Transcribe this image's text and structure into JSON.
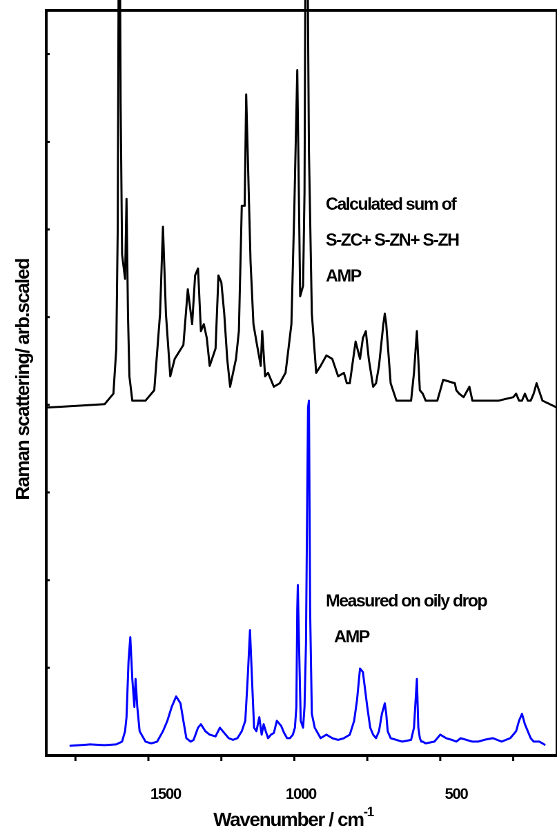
{
  "chart_data": {
    "type": "line",
    "xlabel": "Wavenumber / cm",
    "xlabel_superscript": "-1",
    "ylabel": "Raman scattering/ arb.scaled",
    "xlim": [
      1900,
      150
    ],
    "x_ticks": [
      1500,
      1000,
      500
    ],
    "x_tick_labels": [
      "1500",
      "1000",
      "500"
    ],
    "ylim": [
      0,
      2.1
    ],
    "y_tick_labels_shown": false,
    "grid": false,
    "legend": "none",
    "annotations": {
      "calc_line1": "Calculated sum of",
      "calc_line2": "S-ZC+ S-ZN+ S-ZH",
      "calc_line3": "AMP",
      "meas_line1": "Measured on oily drop",
      "meas_line2": "AMP"
    },
    "series": [
      {
        "label": "calculated",
        "color": "#000000",
        "baseline": 0.98,
        "x": [
          1900,
          1700,
          1670,
          1660,
          1655,
          1650,
          1645,
          1640,
          1630,
          1625,
          1620,
          1615,
          1605,
          1560,
          1530,
          1510,
          1500,
          1490,
          1475,
          1460,
          1430,
          1415,
          1400,
          1390,
          1380,
          1370,
          1360,
          1350,
          1340,
          1320,
          1310,
          1300,
          1290,
          1280,
          1270,
          1250,
          1240,
          1230,
          1220,
          1215,
          1210,
          1200,
          1190,
          1180,
          1165,
          1160,
          1150,
          1140,
          1120,
          1100,
          1080,
          1070,
          1060,
          1050,
          1040,
          1030,
          1020,
          1015,
          1010,
          1005,
          1000,
          990,
          975,
          960,
          940,
          920,
          900,
          880,
          870,
          860,
          840,
          825,
          815,
          805,
          795,
          780,
          770,
          760,
          745,
          740,
          735,
          720,
          700,
          650,
          640,
          630,
          620,
          610,
          600,
          560,
          550,
          540,
          500,
          495,
          485,
          470,
          450,
          440,
          400,
          350,
          300,
          290,
          280,
          270,
          260,
          250,
          240,
          230,
          220,
          200,
          150
        ],
        "y": [
          0.98,
          0.99,
          1.02,
          1.15,
          1.5,
          2.7,
          1.85,
          1.42,
          1.35,
          1.58,
          1.25,
          1.07,
          1.0,
          1.0,
          1.03,
          1.25,
          1.5,
          1.25,
          1.07,
          1.12,
          1.16,
          1.32,
          1.22,
          1.36,
          1.38,
          1.2,
          1.22,
          1.18,
          1.1,
          1.15,
          1.36,
          1.34,
          1.25,
          1.12,
          1.04,
          1.12,
          1.2,
          1.56,
          1.56,
          1.88,
          1.72,
          1.4,
          1.22,
          1.17,
          1.1,
          1.2,
          1.07,
          1.08,
          1.04,
          1.05,
          1.08,
          1.15,
          1.22,
          1.55,
          1.95,
          1.3,
          1.33,
          1.6,
          2.62,
          2.3,
          1.72,
          1.25,
          1.08,
          1.1,
          1.13,
          1.12,
          1.07,
          1.08,
          1.05,
          1.05,
          1.17,
          1.12,
          1.18,
          1.2,
          1.12,
          1.04,
          1.05,
          1.1,
          1.22,
          1.25,
          1.22,
          1.05,
          1.0,
          1.0,
          1.08,
          1.2,
          1.03,
          1.02,
          1.0,
          1.0,
          1.03,
          1.06,
          1.05,
          1.03,
          1.02,
          1.01,
          1.04,
          1.0,
          1.0,
          1.0,
          1.01,
          1.02,
          1.0,
          1.0,
          1.02,
          1.0,
          1.0,
          1.02,
          1.05,
          1.0,
          0.98
        ]
      },
      {
        "label": "measured",
        "color": "#0000ff",
        "baseline": 0.005,
        "x": [
          1820,
          1750,
          1700,
          1660,
          1640,
          1630,
          1625,
          1618,
          1612,
          1605,
          1598,
          1594,
          1588,
          1580,
          1560,
          1540,
          1520,
          1500,
          1485,
          1470,
          1455,
          1440,
          1430,
          1420,
          1405,
          1395,
          1380,
          1370,
          1355,
          1340,
          1320,
          1305,
          1290,
          1275,
          1260,
          1245,
          1230,
          1218,
          1210,
          1202,
          1195,
          1188,
          1180,
          1170,
          1162,
          1155,
          1148,
          1140,
          1130,
          1120,
          1110,
          1095,
          1085,
          1075,
          1065,
          1055,
          1048,
          1043,
          1040,
          1038,
          1035,
          1028,
          1020,
          1015,
          1010,
          1005,
          1003,
          1000,
          996,
          990,
          980,
          960,
          940,
          920,
          900,
          880,
          860,
          845,
          835,
          825,
          815,
          800,
          790,
          780,
          770,
          760,
          750,
          740,
          735,
          730,
          720,
          700,
          680,
          650,
          640,
          630,
          625,
          620,
          615,
          610,
          600,
          570,
          550,
          530,
          510,
          495,
          480,
          460,
          440,
          420,
          400,
          370,
          340,
          310,
          290,
          280,
          270,
          260,
          250,
          240,
          230,
          210,
          200,
          190
        ],
        "y": [
          0.008,
          0.012,
          0.01,
          0.012,
          0.02,
          0.05,
          0.09,
          0.25,
          0.32,
          0.2,
          0.12,
          0.2,
          0.12,
          0.05,
          0.02,
          0.015,
          0.02,
          0.05,
          0.08,
          0.12,
          0.15,
          0.13,
          0.08,
          0.03,
          0.02,
          0.025,
          0.06,
          0.07,
          0.05,
          0.04,
          0.035,
          0.06,
          0.045,
          0.03,
          0.025,
          0.03,
          0.05,
          0.08,
          0.2,
          0.34,
          0.2,
          0.06,
          0.05,
          0.09,
          0.04,
          0.07,
          0.05,
          0.03,
          0.04,
          0.045,
          0.08,
          0.065,
          0.045,
          0.03,
          0.03,
          0.04,
          0.06,
          0.12,
          0.4,
          0.47,
          0.34,
          0.08,
          0.06,
          0.12,
          0.3,
          0.8,
          0.98,
          1.0,
          0.4,
          0.1,
          0.06,
          0.03,
          0.04,
          0.03,
          0.025,
          0.03,
          0.04,
          0.08,
          0.14,
          0.23,
          0.22,
          0.12,
          0.06,
          0.04,
          0.03,
          0.05,
          0.1,
          0.13,
          0.1,
          0.05,
          0.03,
          0.025,
          0.02,
          0.025,
          0.06,
          0.2,
          0.06,
          0.03,
          0.02,
          0.02,
          0.015,
          0.02,
          0.04,
          0.03,
          0.025,
          0.02,
          0.03,
          0.025,
          0.02,
          0.02,
          0.025,
          0.03,
          0.02,
          0.03,
          0.05,
          0.08,
          0.1,
          0.07,
          0.05,
          0.03,
          0.02,
          0.02,
          0.015,
          0.01
        ]
      }
    ]
  }
}
